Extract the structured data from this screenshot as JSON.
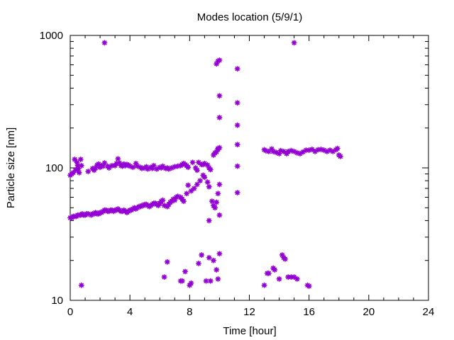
{
  "chart_data": {
    "type": "scatter",
    "title": "Modes location (5/9/1)",
    "xlabel": "Time [hour]",
    "ylabel": "Particle size [nm]",
    "xlim": [
      0,
      24
    ],
    "ylim": [
      10,
      1000
    ],
    "yscale": "log",
    "grid": false,
    "legend": "none",
    "marker_color": "#9400d3",
    "marker": "star",
    "x_ticks": [
      "0",
      "4",
      "8",
      "12",
      "16",
      "20",
      "24"
    ],
    "y_ticks": [
      "10",
      "100",
      "1000"
    ],
    "series": [
      {
        "points": [
          [
            0.0,
            88
          ],
          [
            0.1,
            90
          ],
          [
            0.2,
            92
          ],
          [
            0.3,
            116
          ],
          [
            0.35,
            96
          ],
          [
            0.45,
            110
          ],
          [
            0.5,
            104
          ],
          [
            0.55,
            99
          ],
          [
            0.6,
            92
          ],
          [
            0.7,
            116
          ],
          [
            0.75,
            104
          ],
          [
            1.2,
            94
          ],
          [
            1.5,
            99
          ],
          [
            1.6,
            96
          ],
          [
            1.7,
            100
          ],
          [
            1.8,
            105
          ],
          [
            1.9,
            107
          ],
          [
            2.0,
            101
          ],
          [
            2.1,
            104
          ],
          [
            2.2,
            103
          ],
          [
            2.3,
            109
          ],
          [
            2.5,
            103
          ],
          [
            2.6,
            100
          ],
          [
            2.8,
            104
          ],
          [
            3.0,
            104
          ],
          [
            3.1,
            108
          ],
          [
            3.2,
            117
          ],
          [
            3.3,
            109
          ],
          [
            3.4,
            104
          ],
          [
            3.5,
            103
          ],
          [
            3.6,
            107
          ],
          [
            3.7,
            104
          ],
          [
            3.8,
            106
          ],
          [
            3.9,
            105
          ],
          [
            4.0,
            103
          ],
          [
            4.2,
            101
          ],
          [
            4.4,
            108
          ],
          [
            4.5,
            103
          ],
          [
            4.7,
            101
          ],
          [
            4.8,
            99
          ],
          [
            5.0,
            100
          ],
          [
            5.1,
            102
          ],
          [
            5.2,
            98
          ],
          [
            5.4,
            101
          ],
          [
            5.5,
            99
          ],
          [
            5.6,
            104
          ],
          [
            5.8,
            98
          ],
          [
            6.0,
            101
          ],
          [
            6.1,
            100
          ],
          [
            6.2,
            103
          ],
          [
            6.4,
            99
          ],
          [
            6.5,
            100
          ],
          [
            6.6,
            98
          ],
          [
            6.8,
            100
          ],
          [
            7.0,
            102
          ],
          [
            7.2,
            103
          ],
          [
            7.4,
            104
          ],
          [
            7.5,
            106
          ],
          [
            7.6,
            108
          ],
          [
            7.7,
            106
          ],
          [
            7.8,
            104
          ],
          [
            7.9,
            101
          ],
          [
            8.2,
            110
          ],
          [
            8.4,
            100
          ],
          [
            8.5,
            96
          ],
          [
            8.6,
            110
          ],
          [
            8.8,
            106
          ],
          [
            8.9,
            106
          ],
          [
            9.0,
            108
          ],
          [
            9.2,
            105
          ],
          [
            9.3,
            100
          ],
          [
            9.4,
            97
          ],
          [
            9.6,
            125
          ],
          [
            9.7,
            130
          ],
          [
            9.8,
            132
          ],
          [
            9.9,
            138
          ],
          [
            10.0,
            142
          ],
          [
            13.0,
            137
          ],
          [
            13.1,
            135
          ],
          [
            13.3,
            133
          ],
          [
            13.5,
            139
          ],
          [
            13.6,
            133
          ],
          [
            13.8,
            131
          ],
          [
            14.0,
            128
          ],
          [
            14.1,
            135
          ],
          [
            14.3,
            133
          ],
          [
            14.5,
            128
          ],
          [
            14.6,
            133
          ],
          [
            14.8,
            135
          ],
          [
            15.0,
            133
          ],
          [
            15.2,
            130
          ],
          [
            15.4,
            128
          ],
          [
            15.6,
            132
          ],
          [
            15.8,
            136
          ],
          [
            16.0,
            136
          ],
          [
            16.2,
            138
          ],
          [
            16.4,
            133
          ],
          [
            16.6,
            137
          ],
          [
            16.8,
            138
          ],
          [
            17.0,
            136
          ],
          [
            17.2,
            133
          ],
          [
            17.4,
            136
          ],
          [
            17.6,
            133
          ],
          [
            17.8,
            137
          ],
          [
            17.9,
            140
          ],
          [
            18.0,
            125
          ],
          [
            18.1,
            122
          ],
          [
            0.0,
            42
          ],
          [
            0.1,
            42
          ],
          [
            0.2,
            43
          ],
          [
            0.3,
            43
          ],
          [
            0.4,
            43
          ],
          [
            0.5,
            44
          ],
          [
            0.6,
            44
          ],
          [
            0.7,
            44
          ],
          [
            0.8,
            45
          ],
          [
            0.9,
            44
          ],
          [
            1.0,
            44
          ],
          [
            1.1,
            45
          ],
          [
            1.2,
            45
          ],
          [
            1.4,
            44
          ],
          [
            1.5,
            45
          ],
          [
            1.6,
            45
          ],
          [
            1.7,
            46
          ],
          [
            1.8,
            45
          ],
          [
            1.9,
            45
          ],
          [
            2.0,
            46
          ],
          [
            2.1,
            46
          ],
          [
            2.2,
            47
          ],
          [
            2.3,
            48
          ],
          [
            2.4,
            48
          ],
          [
            2.5,
            47
          ],
          [
            2.6,
            47
          ],
          [
            2.7,
            48
          ],
          [
            2.8,
            48
          ],
          [
            2.9,
            47
          ],
          [
            3.0,
            48
          ],
          [
            3.1,
            48
          ],
          [
            3.2,
            49
          ],
          [
            3.3,
            48
          ],
          [
            3.4,
            47
          ],
          [
            3.5,
            47
          ],
          [
            3.6,
            48
          ],
          [
            3.7,
            47
          ],
          [
            3.8,
            46
          ],
          [
            3.9,
            47
          ],
          [
            4.0,
            48
          ],
          [
            4.1,
            48
          ],
          [
            4.2,
            49
          ],
          [
            4.3,
            50
          ],
          [
            4.4,
            49
          ],
          [
            4.5,
            50
          ],
          [
            4.6,
            51
          ],
          [
            4.7,
            51
          ],
          [
            4.8,
            52
          ],
          [
            4.9,
            52
          ],
          [
            5.0,
            53
          ],
          [
            5.1,
            53
          ],
          [
            5.2,
            52
          ],
          [
            5.3,
            51
          ],
          [
            5.4,
            52
          ],
          [
            5.5,
            53
          ],
          [
            5.6,
            54
          ],
          [
            5.7,
            54
          ],
          [
            5.8,
            53
          ],
          [
            5.9,
            52
          ],
          [
            6.0,
            54
          ],
          [
            6.1,
            56
          ],
          [
            6.2,
            57
          ],
          [
            6.3,
            52
          ],
          [
            6.5,
            51
          ],
          [
            6.6,
            53
          ],
          [
            6.7,
            55
          ],
          [
            6.8,
            56
          ],
          [
            6.9,
            58
          ],
          [
            7.0,
            57
          ],
          [
            7.1,
            60
          ],
          [
            7.2,
            61
          ],
          [
            7.4,
            60
          ],
          [
            7.5,
            58
          ],
          [
            7.6,
            56
          ],
          [
            7.8,
            64
          ],
          [
            7.9,
            74
          ],
          [
            8.1,
            67
          ],
          [
            8.3,
            70
          ],
          [
            8.5,
            75
          ],
          [
            8.7,
            80
          ],
          [
            8.9,
            88
          ],
          [
            9.0,
            85
          ],
          [
            9.2,
            78
          ],
          [
            9.3,
            72
          ],
          [
            9.5,
            56
          ],
          [
            9.6,
            52
          ],
          [
            9.7,
            50
          ],
          [
            9.8,
            55
          ],
          [
            9.9,
            64
          ],
          [
            10.0,
            75
          ],
          [
            9.3,
            40
          ],
          [
            10.0,
            44
          ],
          [
            9.8,
            610
          ],
          [
            9.9,
            640
          ],
          [
            10.0,
            650
          ],
          [
            10.0,
            350
          ],
          [
            10.0,
            240
          ],
          [
            9.9,
            140
          ],
          [
            11.2,
            560
          ],
          [
            11.2,
            310
          ],
          [
            11.2,
            210
          ],
          [
            11.2,
            150
          ],
          [
            11.2,
            103
          ],
          [
            11.2,
            65
          ],
          [
            2.3,
            880
          ],
          [
            15.0,
            880
          ],
          [
            0.75,
            13
          ],
          [
            6.3,
            15
          ],
          [
            6.5,
            19.5
          ],
          [
            7.4,
            14
          ],
          [
            7.5,
            14
          ],
          [
            7.7,
            16.5
          ],
          [
            8.0,
            13
          ],
          [
            8.1,
            13.5
          ],
          [
            8.6,
            19
          ],
          [
            8.8,
            22
          ],
          [
            9.1,
            14
          ],
          [
            9.3,
            21
          ],
          [
            9.4,
            14
          ],
          [
            9.6,
            20
          ],
          [
            9.8,
            17
          ],
          [
            9.9,
            14.5
          ],
          [
            10.0,
            22.5
          ],
          [
            13.0,
            13
          ],
          [
            13.2,
            16
          ],
          [
            13.3,
            16
          ],
          [
            13.6,
            17.5
          ],
          [
            13.7,
            17
          ],
          [
            14.0,
            14.5
          ],
          [
            14.2,
            22
          ],
          [
            14.3,
            21
          ],
          [
            14.4,
            20.5
          ],
          [
            14.6,
            15
          ],
          [
            14.8,
            15
          ],
          [
            15.0,
            15
          ],
          [
            15.2,
            14.5
          ],
          [
            15.9,
            13
          ],
          [
            16.0,
            12.8
          ]
        ]
      }
    ]
  }
}
